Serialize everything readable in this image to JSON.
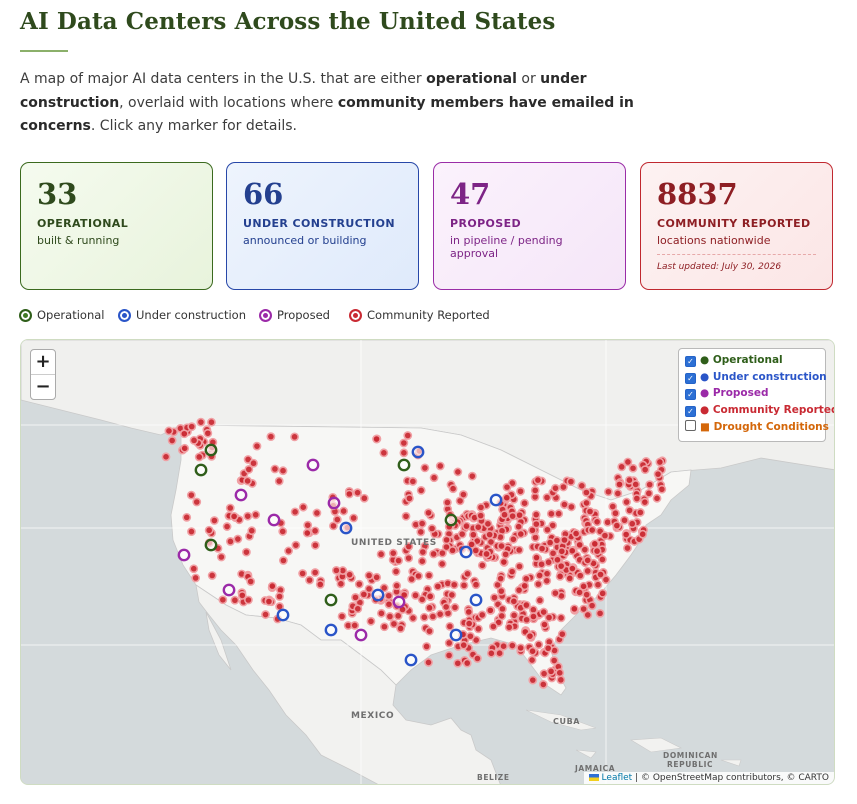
{
  "header": {
    "title": "AI Data Centers Across the United States",
    "intro": {
      "p1": "A map of major AI data centers in the U.S. that are either ",
      "b1": "operational",
      "p2": " or ",
      "b2": "under construction",
      "p3": ", overlaid with locations where ",
      "b3": "community members have emailed in concerns",
      "p4": ". Click any marker for details."
    }
  },
  "cards": {
    "operational": {
      "count": "33",
      "label": "OPERATIONAL",
      "sub": "built & running"
    },
    "under_construction": {
      "count": "66",
      "label": "UNDER CONSTRUCTION",
      "sub": "announced or building"
    },
    "proposed": {
      "count": "47",
      "label": "PROPOSED",
      "sub": "in pipeline / pending approval"
    },
    "community": {
      "count": "8837",
      "label": "COMMUNITY REPORTED",
      "sub": "locations nationwide",
      "updated": "Last updated: July 30, 2026"
    }
  },
  "legend": {
    "operational": "Operational",
    "under_construction": "Under construction",
    "proposed": "Proposed",
    "community": "Community Reported"
  },
  "colors": {
    "operational": "#2f5e1a",
    "under_construction": "#2a55c8",
    "proposed": "#9b2aa8",
    "community": "#c92a33",
    "drought": "#d4670a"
  },
  "map": {
    "zoom_in": "+",
    "zoom_out": "−",
    "layers": {
      "operational": "● Operational",
      "under_construction": "● Under construction",
      "proposed": "● Proposed",
      "community": "● Community Reported",
      "drought": "■ Drought Conditions"
    },
    "labels": {
      "us": "UNITED STATES",
      "mexico": "MEXICO",
      "cuba": "CUBA",
      "dominican": "DOMINICAN",
      "republic": "REPUBLIC",
      "jamaica": "JAMAICA",
      "belize": "BELIZE"
    },
    "attribution": {
      "leaflet": "Leaflet",
      "rest": " | © OpenStreetMap contributors, © CARTO"
    }
  }
}
